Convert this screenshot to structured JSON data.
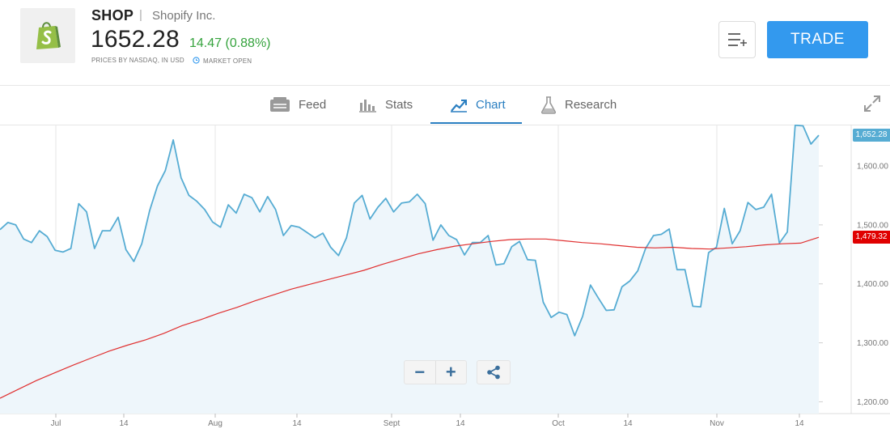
{
  "header": {
    "ticker": "SHOP",
    "separator": "|",
    "company": "Shopify Inc.",
    "price": "1652.28",
    "change": "14.47 (0.88%)",
    "source": "PRICES BY NASDAQ, IN USD",
    "market_status": "MARKET OPEN",
    "trade_label": "TRADE",
    "logo_icon": "shopify-bag-icon",
    "watchlist_icon": "add-to-watchlist-icon"
  },
  "tabs": [
    {
      "label": "Feed",
      "icon": "feed-icon"
    },
    {
      "label": "Stats",
      "icon": "stats-icon"
    },
    {
      "label": "Chart",
      "icon": "chart-icon",
      "active": true
    },
    {
      "label": "Research",
      "icon": "research-flask-icon"
    }
  ],
  "colors": {
    "price_line": "#56acd3",
    "moving_average": "#e03030",
    "positive_change": "#35a33d",
    "accent": "#3399ee",
    "area_fill": "#eef6fb"
  },
  "chart_data": {
    "type": "line",
    "title": "",
    "xlabel": "",
    "ylabel": "",
    "ylim": [
      1180,
      1670
    ],
    "grid": true,
    "y_ticks": [
      "1,200.00",
      "1,300.00",
      "1,400.00",
      "1,500.00",
      "1,600.00"
    ],
    "x_ticks": [
      "Jul",
      "14",
      "Aug",
      "14",
      "Sept",
      "14",
      "Oct",
      "14",
      "Nov",
      "14"
    ],
    "x_start": "Jun 22",
    "x_end": "Nov 19",
    "last_price_label": "1,652.28",
    "ma_price_label": "1,479.32",
    "series": [
      {
        "name": "",
        "values": [
          1492,
          1504,
          1500,
          1476,
          1470,
          1490,
          1480,
          1457,
          1454,
          1460,
          1536,
          1522,
          1460,
          1490,
          1490,
          1513,
          1458,
          1438,
          1468,
          1524,
          1566,
          1592,
          1644,
          1580,
          1550,
          1540,
          1526,
          1505,
          1496,
          1534,
          1520,
          1552,
          1546,
          1522,
          1548,
          1526,
          1482,
          1499,
          1496,
          1487,
          1478,
          1486,
          1462,
          1448,
          1478,
          1537,
          1550,
          1510,
          1530,
          1545,
          1522,
          1537,
          1539,
          1552,
          1536,
          1474,
          1500,
          1482,
          1475,
          1449,
          1470,
          1470,
          1482,
          1432,
          1434,
          1463,
          1472,
          1441,
          1440,
          1369,
          1343,
          1352,
          1348,
          1312,
          1345,
          1398,
          1376,
          1355,
          1356,
          1395,
          1405,
          1422,
          1460,
          1482,
          1484,
          1493,
          1424,
          1424,
          1362,
          1361,
          1453,
          1462,
          1528,
          1468,
          1490,
          1538,
          1526,
          1530,
          1552,
          1469,
          1488,
          1669,
          1668,
          1637,
          1652
        ]
      },
      {
        "name": "",
        "values": [
          1206,
          1221,
          1236,
          1249,
          1262,
          1274,
          1286,
          1296,
          1305,
          1316,
          1329,
          1339,
          1350,
          1360,
          1371,
          1381,
          1391,
          1399,
          1407,
          1415,
          1423,
          1433,
          1442,
          1451,
          1458,
          1464,
          1468,
          1472,
          1475,
          1476,
          1476,
          1473,
          1470,
          1468,
          1465,
          1462,
          1461,
          1462,
          1460,
          1459,
          1461,
          1463,
          1466,
          1468,
          1469,
          1479
        ]
      }
    ]
  },
  "controls": {
    "zoom_out": "−",
    "zoom_in": "+",
    "share_icon": "share-icon"
  }
}
